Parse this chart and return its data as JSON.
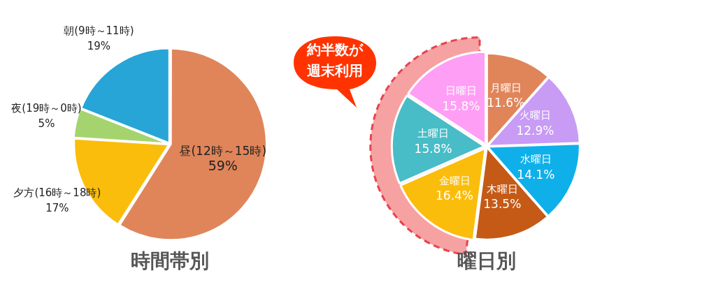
{
  "chart_data": [
    {
      "type": "pie",
      "title": "時間帯別",
      "categories": [
        "昼(12時～15時)",
        "夕方(16時～18時)",
        "夜(19時～0時)",
        "朝(9時～11時)"
      ],
      "values": [
        59,
        17,
        5,
        19
      ],
      "colors": [
        "#e0855a",
        "#fbbd0b",
        "#a5d46f",
        "#27a5d6"
      ],
      "value_labels": [
        "59%",
        "17%",
        "5%",
        "19%"
      ]
    },
    {
      "type": "pie",
      "title": "曜日別",
      "categories": [
        "月曜日",
        "火曜日",
        "水曜日",
        "木曜日",
        "金曜日",
        "土曜日",
        "日曜日"
      ],
      "values": [
        11.6,
        12.9,
        14.1,
        13.5,
        16.4,
        15.8,
        15.8
      ],
      "colors": [
        "#e0855a",
        "#c89bf5",
        "#0fb0ea",
        "#c45a16",
        "#fbbd0b",
        "#48bcc7",
        "#ff9ef5"
      ],
      "value_labels": [
        "11.6%",
        "12.9%",
        "14.1%",
        "13.5%",
        "16.4%",
        "15.8%",
        "15.8%"
      ],
      "annotations": [
        "約半数が週末利用"
      ]
    }
  ]
}
